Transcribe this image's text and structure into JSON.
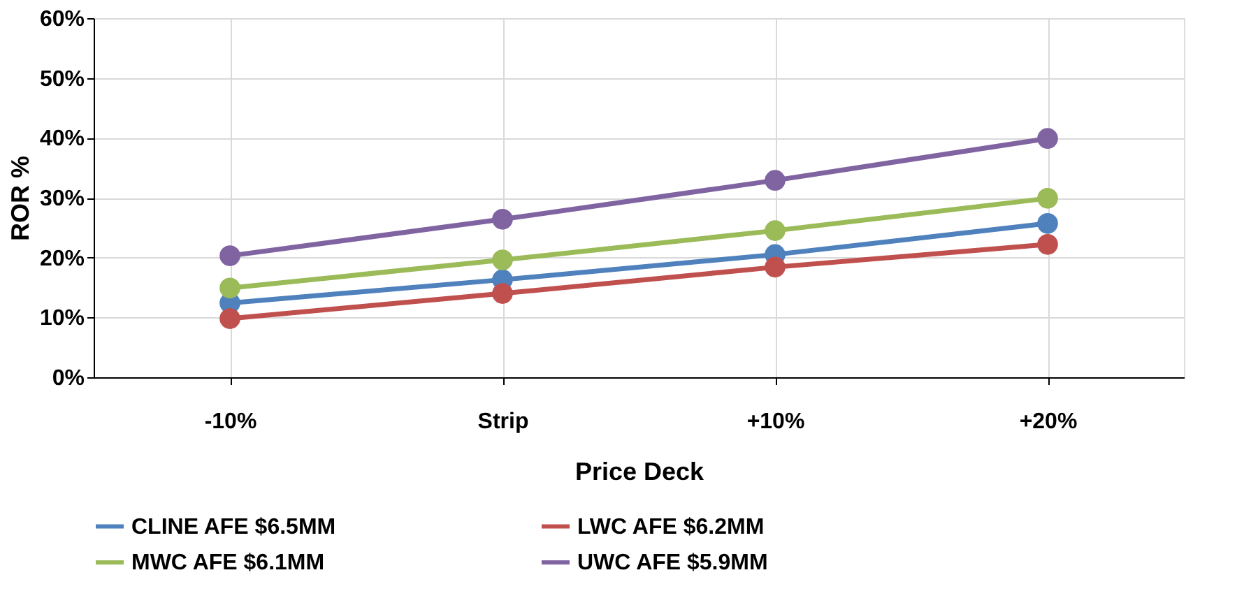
{
  "chart_data": {
    "type": "line",
    "xlabel": "Price Deck",
    "ylabel": "ROR %",
    "categories": [
      "-10%",
      "Strip",
      "+10%",
      "+20%"
    ],
    "series": [
      {
        "name": "CLINE AFE $6.5MM",
        "color": "#4f81bd",
        "values": [
          12.4,
          16.3,
          20.5,
          25.7
        ]
      },
      {
        "name": "LWC AFE $6.2MM",
        "color": "#c0504d",
        "values": [
          9.8,
          14.0,
          18.4,
          22.2
        ]
      },
      {
        "name": "MWC AFE $6.1MM",
        "color": "#9bbb59",
        "values": [
          14.9,
          19.6,
          24.5,
          29.9
        ]
      },
      {
        "name": "UWC AFE $5.9MM",
        "color": "#8064a2",
        "values": [
          20.3,
          26.4,
          32.9,
          39.9
        ]
      }
    ],
    "ylim": [
      0,
      60
    ],
    "yticks": [
      {
        "value": 0,
        "label": "0%"
      },
      {
        "value": 10,
        "label": "10%"
      },
      {
        "value": 20,
        "label": "20%"
      },
      {
        "value": 30,
        "label": "30%"
      },
      {
        "value": 40,
        "label": "40%"
      },
      {
        "value": 50,
        "label": "50%"
      },
      {
        "value": 60,
        "label": "60%"
      }
    ],
    "grid": true,
    "legend": "bottom",
    "marker": "circle",
    "line_style": "solid"
  }
}
